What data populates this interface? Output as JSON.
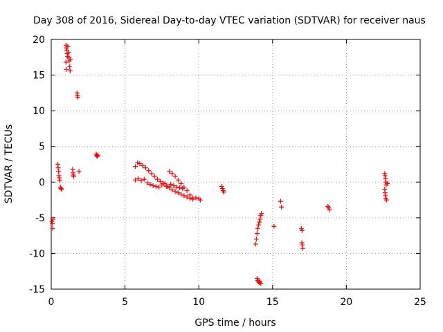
{
  "colors": {
    "series": "#ff0000",
    "grid": "#a0a0a0",
    "axis": "#000000"
  },
  "chart_data": {
    "type": "scatter",
    "marker": "plus",
    "title": "Day 308 of 2016, Sidereal Day-to-day VTEC variation (SDTVAR) for receiver naus",
    "xlabel": "GPS time / hours",
    "ylabel": "SDTVAR / TECUs",
    "xlim": [
      0,
      25
    ],
    "ylim": [
      -15,
      20
    ],
    "xticks": [
      0,
      5,
      10,
      15,
      20,
      25
    ],
    "yticks": [
      -15,
      -10,
      -5,
      0,
      5,
      10,
      15,
      20
    ],
    "grid": true,
    "series": [
      {
        "name": "SDTVAR",
        "color": "#ff0000",
        "points": [
          [
            0.05,
            -5.5
          ],
          [
            0.08,
            -5.8
          ],
          [
            0.1,
            -6.5
          ],
          [
            0.12,
            -5.2
          ],
          [
            0.45,
            2.5
          ],
          [
            0.47,
            2.0
          ],
          [
            0.5,
            1.5
          ],
          [
            0.52,
            0.9
          ],
          [
            0.55,
            0.6
          ],
          [
            0.58,
            0.2
          ],
          [
            0.62,
            -0.7
          ],
          [
            0.66,
            -0.9
          ],
          [
            0.7,
            -1.0
          ],
          [
            1.0,
            19.2
          ],
          [
            1.02,
            18.8
          ],
          [
            1.05,
            18.5
          ],
          [
            1.08,
            18.0
          ],
          [
            1.1,
            17.6
          ],
          [
            1.0,
            16.8
          ],
          [
            1.02,
            15.8
          ],
          [
            1.12,
            19.0
          ],
          [
            1.18,
            18.2
          ],
          [
            1.2,
            17.5
          ],
          [
            1.22,
            17.0
          ],
          [
            1.25,
            16.2
          ],
          [
            1.28,
            15.6
          ],
          [
            1.3,
            17.2
          ],
          [
            1.45,
            1.8
          ],
          [
            1.48,
            1.3
          ],
          [
            1.5,
            1.0
          ],
          [
            1.52,
            0.8
          ],
          [
            1.75,
            12.5
          ],
          [
            1.78,
            12.1
          ],
          [
            1.8,
            11.9
          ],
          [
            1.88,
            1.5
          ],
          [
            3.05,
            3.9
          ],
          [
            3.08,
            3.7
          ],
          [
            3.12,
            3.6
          ],
          [
            3.15,
            3.8
          ],
          [
            5.7,
            2.2
          ],
          [
            5.85,
            2.7
          ],
          [
            6.0,
            2.6
          ],
          [
            6.2,
            2.3
          ],
          [
            6.4,
            2.0
          ],
          [
            6.6,
            1.6
          ],
          [
            6.8,
            1.2
          ],
          [
            7.0,
            0.8
          ],
          [
            7.2,
            0.4
          ],
          [
            7.4,
            0.1
          ],
          [
            7.6,
            -0.2
          ],
          [
            7.8,
            -0.6
          ],
          [
            8.0,
            -0.8
          ],
          [
            8.2,
            -1.1
          ],
          [
            8.4,
            -1.3
          ],
          [
            8.6,
            -1.5
          ],
          [
            8.8,
            -1.7
          ],
          [
            9.0,
            -1.9
          ],
          [
            9.2,
            -2.1
          ],
          [
            9.4,
            -2.3
          ],
          [
            9.6,
            -2.4
          ],
          [
            9.8,
            -2.2
          ],
          [
            10.0,
            -2.3
          ],
          [
            10.1,
            -2.5
          ],
          [
            5.7,
            0.3
          ],
          [
            5.9,
            0.5
          ],
          [
            6.1,
            0.2
          ],
          [
            6.3,
            0.4
          ],
          [
            6.5,
            -0.1
          ],
          [
            6.7,
            -0.3
          ],
          [
            6.9,
            -0.5
          ],
          [
            7.1,
            -0.6
          ],
          [
            7.3,
            -0.7
          ],
          [
            7.5,
            -0.4
          ],
          [
            7.7,
            -0.2
          ],
          [
            7.9,
            -0.6
          ],
          [
            8.1,
            -0.3
          ],
          [
            8.3,
            -0.5
          ],
          [
            8.5,
            -0.7
          ],
          [
            8.7,
            -0.8
          ],
          [
            8.9,
            -0.9
          ],
          [
            8.0,
            1.5
          ],
          [
            8.2,
            1.2
          ],
          [
            8.4,
            0.8
          ],
          [
            8.6,
            0.3
          ],
          [
            8.8,
            -0.2
          ],
          [
            9.0,
            -0.7
          ],
          [
            9.2,
            -1.2
          ],
          [
            9.4,
            -1.8
          ],
          [
            9.6,
            -2.2
          ],
          [
            11.55,
            -0.6
          ],
          [
            11.6,
            -0.9
          ],
          [
            11.65,
            -1.2
          ],
          [
            11.7,
            -1.4
          ],
          [
            13.85,
            -8.7
          ],
          [
            13.9,
            -8.0
          ],
          [
            13.95,
            -7.2
          ],
          [
            14.0,
            -6.5
          ],
          [
            14.05,
            -6.0
          ],
          [
            14.1,
            -5.6
          ],
          [
            14.15,
            -5.2
          ],
          [
            14.2,
            -4.7
          ],
          [
            14.25,
            -4.4
          ],
          [
            13.95,
            -13.5
          ],
          [
            14.0,
            -13.8
          ],
          [
            14.05,
            -14.0
          ],
          [
            14.1,
            -14.1
          ],
          [
            14.15,
            -13.9
          ],
          [
            14.2,
            -14.2
          ],
          [
            15.1,
            -6.2
          ],
          [
            15.55,
            -2.7
          ],
          [
            15.6,
            -3.5
          ],
          [
            16.95,
            -6.5
          ],
          [
            17.0,
            -6.8
          ],
          [
            16.98,
            -8.5
          ],
          [
            17.02,
            -8.8
          ],
          [
            17.05,
            -9.3
          ],
          [
            18.75,
            -3.4
          ],
          [
            18.8,
            -3.6
          ],
          [
            18.85,
            -3.9
          ],
          [
            22.6,
            1.2
          ],
          [
            22.62,
            0.9
          ],
          [
            22.65,
            0.5
          ],
          [
            22.68,
            0.0
          ],
          [
            22.7,
            -0.4
          ],
          [
            22.6,
            -1.0
          ],
          [
            22.62,
            -1.5
          ],
          [
            22.65,
            -1.9
          ],
          [
            22.68,
            -2.3
          ],
          [
            22.72,
            -2.5
          ],
          [
            22.78,
            -0.2
          ]
        ]
      }
    ]
  }
}
